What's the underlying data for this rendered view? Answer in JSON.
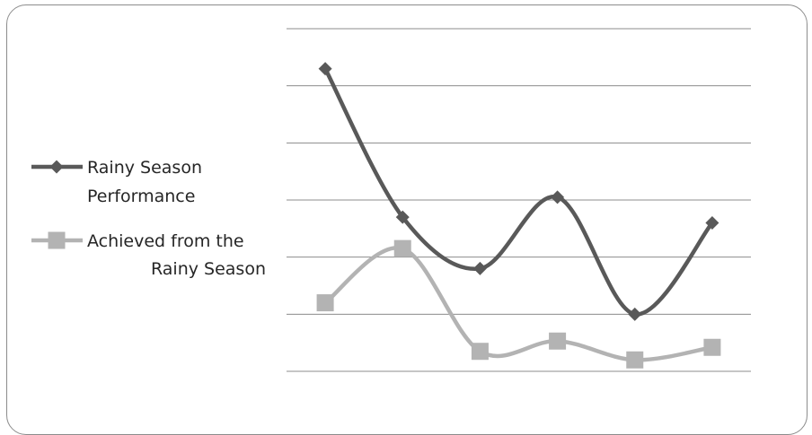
{
  "chart_data": {
    "type": "line",
    "title": "",
    "xlabel": "",
    "ylabel": "",
    "x": [
      1,
      2,
      3,
      4,
      5,
      6
    ],
    "ylim": [
      0,
      6
    ],
    "y_gridlines": [
      0,
      1,
      2,
      3,
      4,
      5,
      6
    ],
    "grid": true,
    "smooth": true,
    "axis_labels_visible": false,
    "legend": "left",
    "series": [
      {
        "name": "Rainy Season Performance",
        "legend_lines": [
          "Rainy Season",
          "Performance"
        ],
        "marker": "diamond",
        "color": "#595959",
        "values": [
          5.3,
          2.7,
          1.8,
          3.05,
          1.0,
          2.6
        ]
      },
      {
        "name": "Achieved from the Rainy Season",
        "legend_lines": [
          "Achieved from the",
          "Rainy Season"
        ],
        "marker": "square",
        "color": "#b3b3b3",
        "values": [
          1.2,
          2.15,
          0.35,
          0.53,
          0.2,
          0.42
        ]
      }
    ]
  }
}
